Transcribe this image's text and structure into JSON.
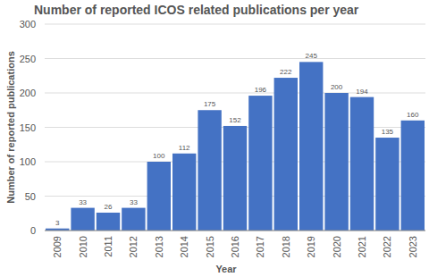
{
  "chart_data": {
    "type": "bar",
    "title": "Number of reported ICOS related publications per year",
    "x_label": "Year",
    "y_label": "Number of reported publications",
    "categories": [
      "2009",
      "2010",
      "2011",
      "2012",
      "2013",
      "2014",
      "2015",
      "2016",
      "2017",
      "2018",
      "2019",
      "2020",
      "2021",
      "2022",
      "2023"
    ],
    "values": [
      3,
      33,
      26,
      33,
      100,
      112,
      175,
      152,
      196,
      222,
      245,
      200,
      194,
      135,
      160
    ],
    "color": "#4472c4",
    "ylim": [
      0,
      300
    ],
    "yticks": [
      0,
      50,
      100,
      150,
      200,
      250,
      300
    ],
    "grid": true,
    "data_labels": true
  }
}
